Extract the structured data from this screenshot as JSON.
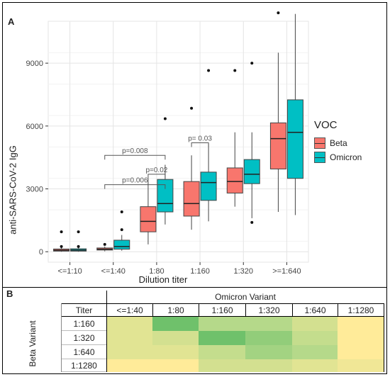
{
  "panel_a_label": "A",
  "panel_b_label": "B",
  "colors": {
    "beta": "#F8766D",
    "omicron": "#00BFC4",
    "heat_low": "#FFEB99",
    "heat_mid": "#B5D98A",
    "heat_high": "#5DBB63"
  },
  "chart_data": {
    "type": "box",
    "xlabel": "Dilution titer",
    "ylabel": "anti-SARS-CoV-2 IgG",
    "ylim": [
      -500,
      11000
    ],
    "y_ticks": [
      0,
      3000,
      6000,
      9000
    ],
    "grid": true,
    "categories": [
      "<=1:10",
      "<=1:40",
      "1:80",
      "1:160",
      "1:320",
      ">=1:640"
    ],
    "legend": {
      "title": "VOC",
      "placement": "right"
    },
    "series": [
      {
        "name": "Beta",
        "color": "#F8766D",
        "boxes": [
          {
            "min": 0,
            "q1": 30,
            "median": 70,
            "q3": 130,
            "max": 200,
            "outliers": [
              950,
              250
            ]
          },
          {
            "min": 20,
            "q1": 80,
            "median": 120,
            "q3": 180,
            "max": 250,
            "outliers": [
              350
            ]
          },
          {
            "min": 350,
            "q1": 950,
            "median": 1450,
            "q3": 2150,
            "max": 3500,
            "outliers": []
          },
          {
            "min": 1050,
            "q1": 1700,
            "median": 2300,
            "q3": 3350,
            "max": 4600,
            "outliers": [
              6850
            ]
          },
          {
            "min": 2150,
            "q1": 2800,
            "median": 3350,
            "q3": 4000,
            "max": 5700,
            "outliers": [
              8650
            ]
          },
          {
            "min": 1900,
            "q1": 3950,
            "median": 5400,
            "q3": 6150,
            "max": 9500,
            "outliers": [
              11400
            ]
          }
        ]
      },
      {
        "name": "Omicron",
        "color": "#00BFC4",
        "boxes": [
          {
            "min": 0,
            "q1": 30,
            "median": 80,
            "q3": 140,
            "max": 220,
            "outliers": [
              950,
              250
            ]
          },
          {
            "min": 50,
            "q1": 120,
            "median": 250,
            "q3": 550,
            "max": 800,
            "outliers": [
              1900,
              1050
            ]
          },
          {
            "min": 1300,
            "q1": 1900,
            "median": 2300,
            "q3": 3450,
            "max": 4150,
            "outliers": [
              6350
            ]
          },
          {
            "min": 1450,
            "q1": 2450,
            "median": 3300,
            "q3": 3800,
            "max": 5150,
            "outliers": [
              8650
            ]
          },
          {
            "min": 1600,
            "q1": 3250,
            "median": 3700,
            "q3": 4400,
            "max": 5700,
            "outliers": [
              9000,
              1400
            ]
          },
          {
            "min": 1750,
            "q1": 3500,
            "median": 5700,
            "q3": 7250,
            "max": 11350,
            "outliers": []
          }
        ]
      }
    ],
    "annotations": [
      {
        "text": "p=0.006",
        "from_group": "<=1:40",
        "to_group": "1:80",
        "y": 3200
      },
      {
        "text": "p=0.008",
        "from_group": "<=1:40",
        "to_group": "1:80",
        "y": 4600
      },
      {
        "text": "p=0.02",
        "from_group": "1:80",
        "to_group": "1:80",
        "y": 3700
      },
      {
        "text": "p= 0.03",
        "from_group": "1:160",
        "to_group": "1:160",
        "y": 5200
      }
    ]
  },
  "table_b": {
    "column_group_header": "Omicron Variant",
    "row_group_header": "Beta Variant",
    "corner_header": "Titer",
    "columns": [
      "<=1:40",
      "1:80",
      "1:160",
      "1:320",
      "1:640",
      "1:1280"
    ],
    "rows": [
      {
        "label": "1:160",
        "levels": [
          0.2,
          0.9,
          0.5,
          0.5,
          0.3,
          0.0
        ]
      },
      {
        "label": "1:320",
        "levels": [
          0.2,
          0.3,
          0.9,
          0.7,
          0.4,
          0.0
        ]
      },
      {
        "label": "1:640",
        "levels": [
          0.2,
          0.2,
          0.4,
          0.6,
          0.5,
          0.0
        ]
      },
      {
        "label": "1:1280",
        "levels": [
          0.0,
          0.0,
          0.3,
          0.3,
          0.2,
          0.1
        ]
      }
    ]
  }
}
